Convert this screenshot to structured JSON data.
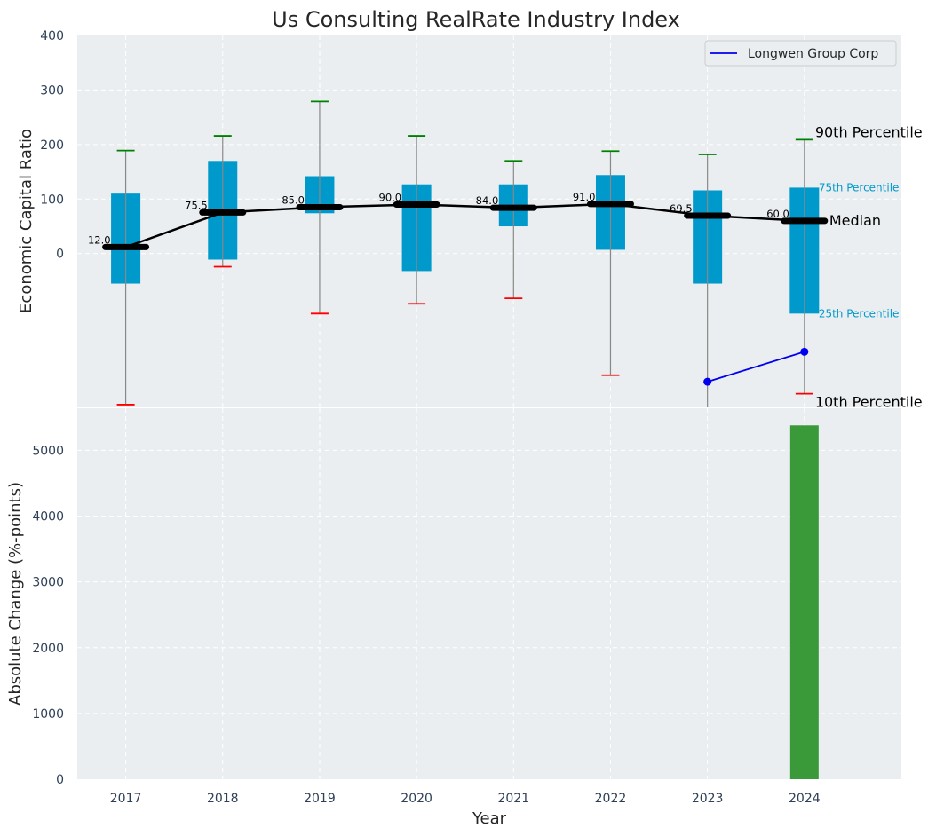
{
  "chart_data": [
    {
      "type": "box",
      "title": "Us Consulting RealRate Industry Index",
      "xlabel": "",
      "ylabel": "Economic Capital Ratio",
      "ylim": [
        -282,
        400
      ],
      "yticks": [
        0,
        100,
        200,
        300,
        400
      ],
      "xlim": [
        2016.5,
        2025
      ],
      "grid": true,
      "categories": [
        "2017",
        "2018",
        "2019",
        "2020",
        "2021",
        "2022",
        "2023",
        "2024"
      ],
      "series": [
        {
          "name": "90th Percentile",
          "values": [
            189,
            216,
            279,
            216,
            170,
            188,
            182,
            209
          ]
        },
        {
          "name": "75th Percentile",
          "values": [
            110,
            170,
            142,
            127,
            127,
            144,
            116,
            121
          ]
        },
        {
          "name": "Median",
          "values": [
            12.0,
            75.5,
            85.0,
            90.0,
            84.0,
            91.0,
            69.5,
            60.0
          ]
        },
        {
          "name": "25th Percentile",
          "values": [
            -55,
            -11,
            74,
            -32,
            50,
            7,
            -55,
            -110
          ]
        },
        {
          "name": "10th Percentile",
          "values": [
            -277,
            -24,
            -110,
            -92,
            -82,
            -223,
            -300,
            -257
          ]
        }
      ],
      "median_labels": [
        "12.0",
        "75.5",
        "85.0",
        "90.0",
        "84.0",
        "91.0",
        "69.5",
        "60.0"
      ],
      "company_line": {
        "name": "Longwen Group Corp",
        "x": [
          2023,
          2024
        ],
        "values": [
          -235,
          -180
        ],
        "color": "#0000ee"
      },
      "annotations": {
        "p90": "90th Percentile",
        "p75": "75th Percentile",
        "median": "Median",
        "p25": "25th Percentile",
        "p10": "10th Percentile"
      },
      "legend": {
        "entries": [
          "Longwen Group Corp"
        ],
        "placement": "top-right"
      },
      "colors": {
        "box": "#0099cc",
        "whisker": "#888888",
        "cap_top": "#008000",
        "cap_bottom": "#ff0000",
        "median": "#000000",
        "background": "#eaeef0"
      }
    },
    {
      "type": "bar",
      "title": "",
      "xlabel": "Year",
      "ylabel": "Absolute Change (%-points)",
      "ylim": [
        0,
        5640
      ],
      "yticks": [
        0,
        1000,
        2000,
        3000,
        4000,
        5000
      ],
      "xlim": [
        2016.5,
        2025
      ],
      "categories": [
        "2017",
        "2018",
        "2019",
        "2020",
        "2021",
        "2022",
        "2023",
        "2024"
      ],
      "x": [
        2024
      ],
      "values": [
        5380
      ],
      "grid": true,
      "colors": {
        "bar": "#3a9a3a"
      }
    }
  ]
}
